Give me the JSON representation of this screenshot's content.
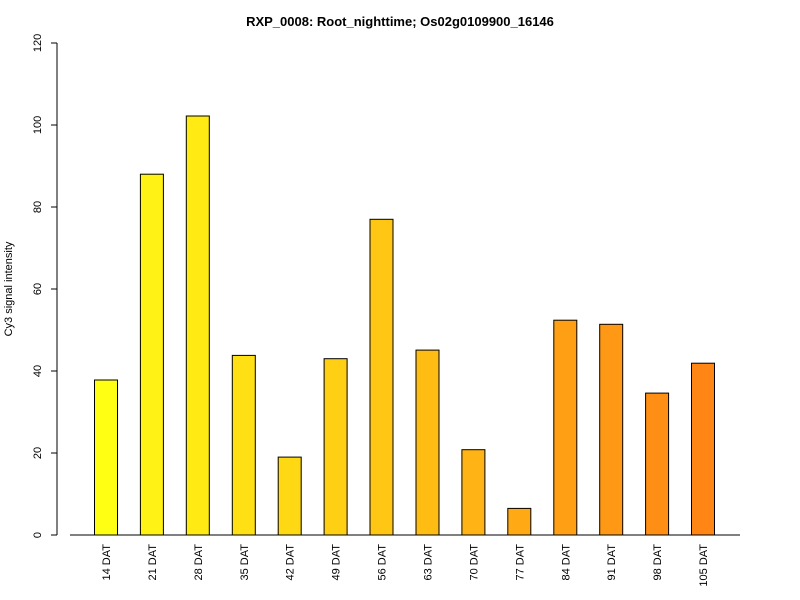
{
  "chart_data": {
    "type": "bar",
    "title": "RXP_0008: Root_nighttime; Os02g0109900_16146",
    "xlabel": "",
    "ylabel": "Cy3 signal intensity",
    "ylim": [
      0,
      120
    ],
    "yticks": [
      0,
      20,
      40,
      60,
      80,
      100,
      120
    ],
    "grid": false,
    "legend": "none",
    "categories": [
      "14 DAT",
      "21 DAT",
      "28 DAT",
      "35 DAT",
      "42 DAT",
      "49 DAT",
      "56 DAT",
      "63 DAT",
      "70 DAT",
      "77 DAT",
      "84 DAT",
      "91 DAT",
      "98 DAT",
      "105 DAT"
    ],
    "values": [
      37.8,
      88.0,
      102.2,
      43.8,
      19.0,
      43.0,
      77.0,
      45.1,
      20.8,
      6.5,
      52.4,
      51.4,
      34.6,
      41.9
    ],
    "colors": [
      "#FFFF14",
      "#FFF214",
      "#FFEA14",
      "#FFE014",
      "#FFD814",
      "#FFCF14",
      "#FFC614",
      "#FFBD14",
      "#FFB314",
      "#FFAA14",
      "#FFA014",
      "#FF9814",
      "#FF8E14",
      "#FF8514"
    ]
  }
}
